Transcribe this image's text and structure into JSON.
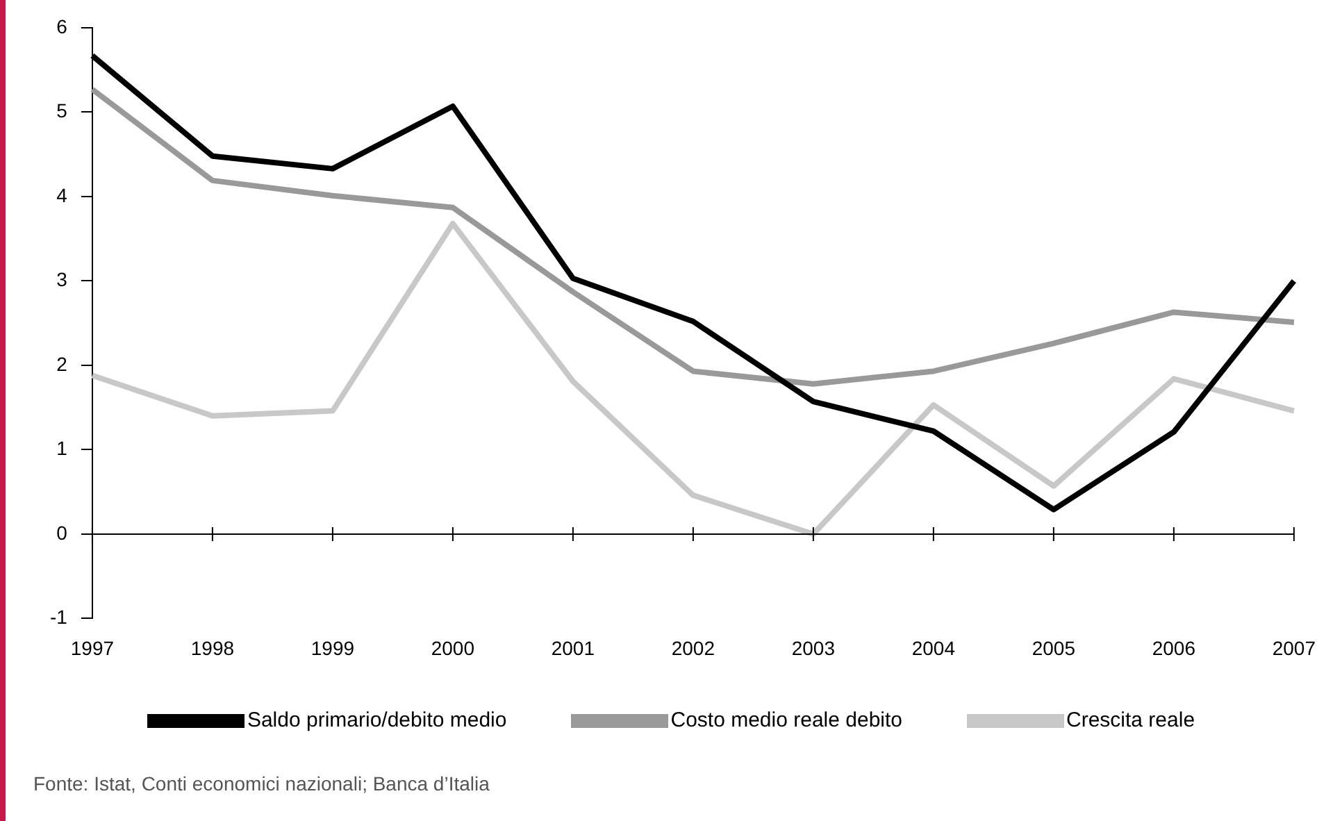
{
  "chart_data": {
    "type": "line",
    "categories": [
      "1997",
      "1998",
      "1999",
      "2000",
      "2001",
      "2002",
      "2003",
      "2004",
      "2005",
      "2006",
      "2007"
    ],
    "series": [
      {
        "name": "Saldo primario/debito medio",
        "color": "#000000",
        "values": [
          5.67,
          4.48,
          4.33,
          5.07,
          3.03,
          2.52,
          1.57,
          1.22,
          0.29,
          1.21,
          3.0
        ]
      },
      {
        "name": "Costo medio reale debito",
        "color": "#999999",
        "values": [
          5.27,
          4.19,
          4.01,
          3.87,
          2.87,
          1.93,
          1.78,
          1.93,
          2.26,
          2.63,
          2.51
        ]
      },
      {
        "name": "Crescita reale",
        "color": "#c8c8c8",
        "values": [
          1.88,
          1.4,
          1.46,
          3.68,
          1.81,
          0.46,
          0.0,
          1.53,
          0.57,
          1.84,
          1.46
        ]
      }
    ],
    "ref_lines": [
      {
        "axis": "y",
        "value": 0,
        "color": "#000000"
      }
    ],
    "ylim": [
      -1,
      6
    ],
    "yticks": [
      -1,
      0,
      1,
      2,
      3,
      4,
      5,
      6
    ],
    "grid": false,
    "legend": "bottom",
    "marker": "none",
    "line_style": "solid",
    "annotations": [
      "Fonte: Istat, Conti economici nazionali; Banca d’Italia"
    ]
  }
}
